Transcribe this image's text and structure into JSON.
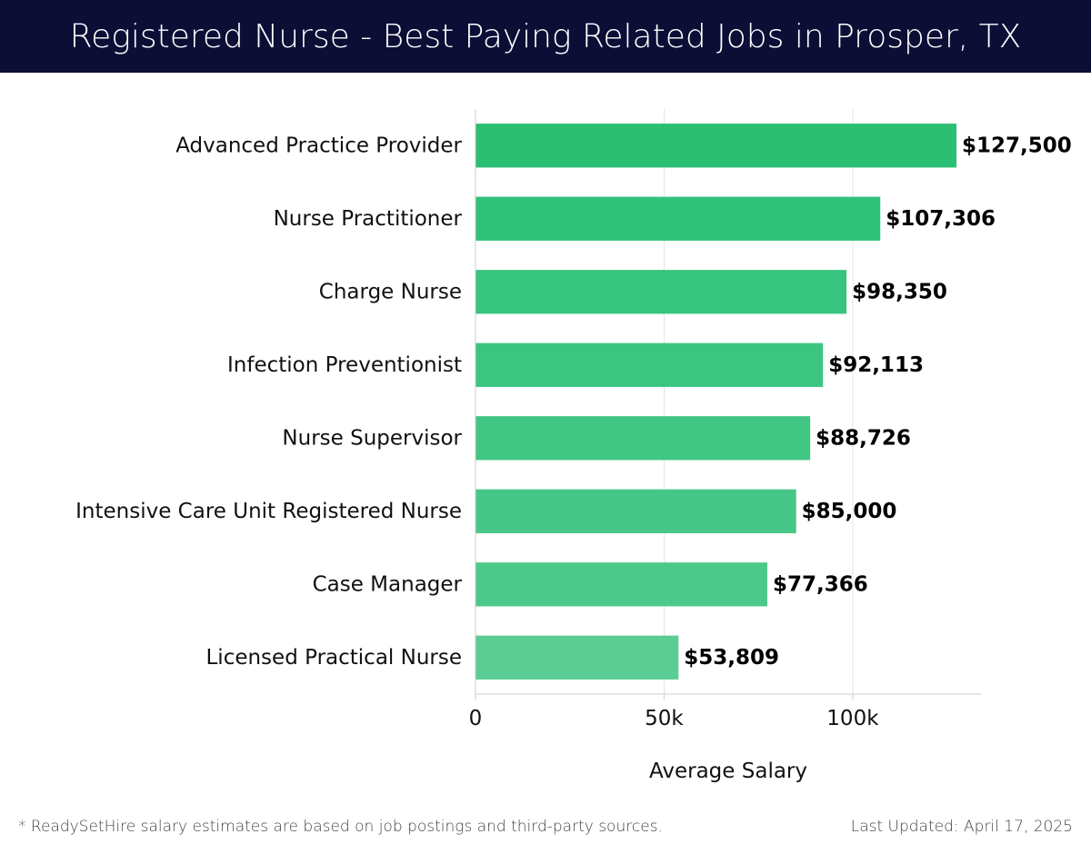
{
  "header": {
    "title": "Registered Nurse - Best Paying Related Jobs in Prosper, TX"
  },
  "chart_data": {
    "type": "bar",
    "orientation": "horizontal",
    "title": "Registered Nurse - Best Paying Related Jobs in Prosper, TX",
    "xlabel": "Average Salary",
    "ylabel": "",
    "xlim": [
      0,
      134000
    ],
    "x_ticks": [
      {
        "value": 0,
        "label": "0"
      },
      {
        "value": 50000,
        "label": "50k"
      },
      {
        "value": 100000,
        "label": "100k"
      }
    ],
    "grid": true,
    "categories": [
      "Advanced Practice Provider",
      "Nurse Practitioner",
      "Charge Nurse",
      "Infection Preventionist",
      "Nurse Supervisor",
      "Intensive Care Unit Registered Nurse",
      "Case Manager",
      "Licensed Practical Nurse"
    ],
    "values": [
      127500,
      107306,
      98350,
      92113,
      88726,
      85000,
      77366,
      53809
    ],
    "value_labels": [
      "$127,500",
      "$107,306",
      "$98,350",
      "$92,113",
      "$88,726",
      "$85,000",
      "$77,366",
      "$53,809"
    ],
    "bar_colors": [
      "#2bbf74",
      "#31c27a",
      "#37c47e",
      "#3cc581",
      "#42c684",
      "#46c787",
      "#4cc98a",
      "#5bcd94"
    ]
  },
  "footer": {
    "note": "* ReadySetHire salary estimates are based on job postings and third-party sources.",
    "updated": "Last Updated: April 17, 2025"
  }
}
